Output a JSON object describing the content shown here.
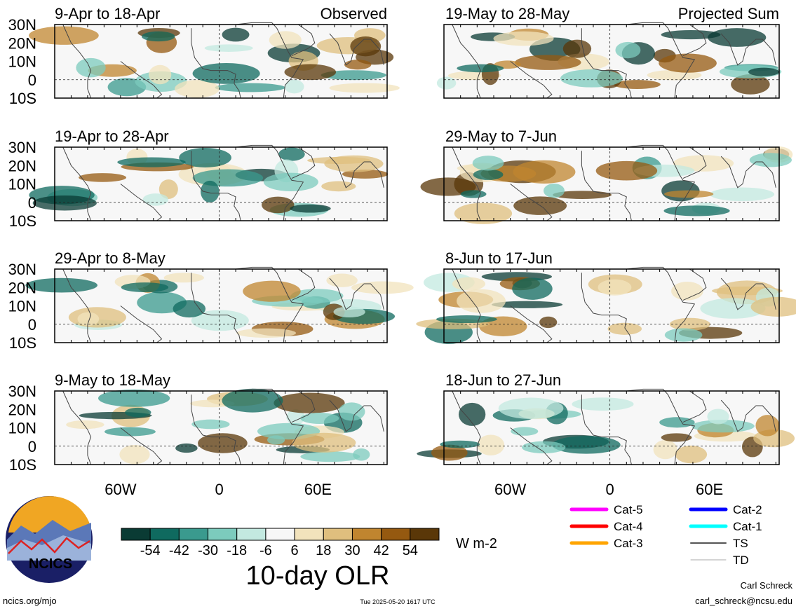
{
  "chart_data": {
    "type": "heatmap",
    "title": "10-day OLR",
    "units": "W m-2",
    "colorbar": {
      "ticks": [
        -54,
        -42,
        -30,
        -18,
        -6,
        6,
        18,
        30,
        42,
        54
      ],
      "colors": [
        "#0a3b34",
        "#0f6a5f",
        "#3a9a8e",
        "#7ccbbd",
        "#c3e9e0",
        "#f7f7f7",
        "#f2e3bc",
        "#dfbf7e",
        "#c0852f",
        "#955910",
        "#5a3708"
      ]
    },
    "map": {
      "lon_ticks": [
        {
          "label": "60W",
          "value": -60
        },
        {
          "label": "0",
          "value": 0
        },
        {
          "label": "60E",
          "value": 60
        }
      ],
      "lat_ticks": [
        {
          "label": "30N",
          "value": 30
        },
        {
          "label": "20N",
          "value": 20
        },
        {
          "label": "10N",
          "value": 10
        },
        {
          "label": "0",
          "value": 0
        },
        {
          "label": "10S",
          "value": -10
        }
      ],
      "lon_range": [
        -100,
        102
      ],
      "lat_range": [
        -10,
        30
      ]
    },
    "columns": [
      {
        "label": "Observed",
        "panels": [
          {
            "period": "9-Apr to 18-Apr"
          },
          {
            "period": "19-Apr to 28-Apr"
          },
          {
            "period": "29-Apr to 8-May"
          },
          {
            "period": "9-May to 18-May"
          }
        ]
      },
      {
        "label": "Projected Sum",
        "panels": [
          {
            "period": "19-May to 28-May"
          },
          {
            "period": "29-May to 7-Jun"
          },
          {
            "period": "8-Jun to 17-Jun"
          },
          {
            "period": "18-Jun to 27-Jun"
          }
        ]
      }
    ],
    "legend": [
      {
        "label": "Cat-5",
        "color": "#ff00ff"
      },
      {
        "label": "Cat-4",
        "color": "#ff0000"
      },
      {
        "label": "Cat-3",
        "color": "#ffa500"
      },
      {
        "label": "Cat-2",
        "color": "#0000ff"
      },
      {
        "label": "Cat-1",
        "color": "#00ffff"
      },
      {
        "label": "TS",
        "color": "#555555"
      },
      {
        "label": "TD",
        "color": "#aaaaaa"
      }
    ]
  },
  "logo": {
    "text": "NCICS"
  },
  "footer": {
    "site": "ncics.org/mjo",
    "timestamp": "Tue 2025-05-20 1617 UTC",
    "author": "Carl Schreck",
    "email": "carl_schreck@ncsu.edu"
  }
}
